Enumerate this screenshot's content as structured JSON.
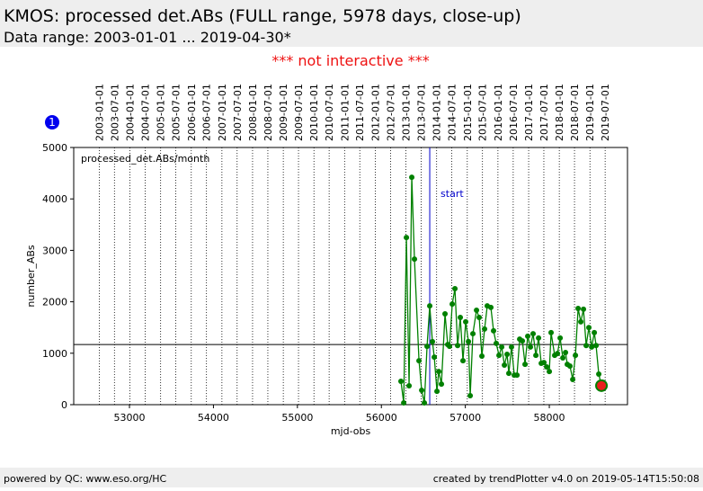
{
  "header": {
    "title": "KMOS: processed det.ABs (FULL range, 5978 days, close-up)",
    "subtitle": "Data range: 2003-01-01 ... 2019-04-30*"
  },
  "notice": "*** not interactive ***",
  "badge": "1",
  "footer": {
    "left": "powered by QC: www.eso.org/HC",
    "right": "created by trendPlotter v4.0 on 2019-05-14T15:50:08"
  },
  "chart_data": {
    "type": "line",
    "annotation": "processed_det.ABs/month",
    "y_label": "number_ABs",
    "x_label": "mjd-obs",
    "xlim": [
      52336,
      58931
    ],
    "ylim": [
      0,
      5000
    ],
    "xticks": [
      53000,
      54000,
      55000,
      56000,
      57000,
      58000
    ],
    "yticks": [
      0,
      1000,
      2000,
      3000,
      4000,
      5000
    ],
    "x2ticks": [
      {
        "value": 52640,
        "label": "2003-01-01"
      },
      {
        "value": 52821,
        "label": "2003-07-01"
      },
      {
        "value": 53005,
        "label": "2004-01-01"
      },
      {
        "value": 53187,
        "label": "2004-07-01"
      },
      {
        "value": 53371,
        "label": "2005-01-01"
      },
      {
        "value": 53552,
        "label": "2005-07-01"
      },
      {
        "value": 53736,
        "label": "2006-01-01"
      },
      {
        "value": 53917,
        "label": "2006-07-01"
      },
      {
        "value": 54101,
        "label": "2007-01-01"
      },
      {
        "value": 54282,
        "label": "2007-07-01"
      },
      {
        "value": 54466,
        "label": "2008-01-01"
      },
      {
        "value": 54648,
        "label": "2008-07-01"
      },
      {
        "value": 54832,
        "label": "2009-01-01"
      },
      {
        "value": 55013,
        "label": "2009-07-01"
      },
      {
        "value": 55197,
        "label": "2010-01-01"
      },
      {
        "value": 55378,
        "label": "2010-07-01"
      },
      {
        "value": 55562,
        "label": "2011-01-01"
      },
      {
        "value": 55743,
        "label": "2011-07-01"
      },
      {
        "value": 55927,
        "label": "2012-01-01"
      },
      {
        "value": 56109,
        "label": "2012-07-01"
      },
      {
        "value": 56293,
        "label": "2013-01-01"
      },
      {
        "value": 56474,
        "label": "2013-07-01"
      },
      {
        "value": 56658,
        "label": "2014-01-01"
      },
      {
        "value": 56839,
        "label": "2014-07-01"
      },
      {
        "value": 57023,
        "label": "2015-01-01"
      },
      {
        "value": 57204,
        "label": "2015-07-01"
      },
      {
        "value": 57388,
        "label": "2016-01-01"
      },
      {
        "value": 57570,
        "label": "2016-07-01"
      },
      {
        "value": 57754,
        "label": "2017-01-01"
      },
      {
        "value": 57935,
        "label": "2017-07-01"
      },
      {
        "value": 58119,
        "label": "2018-01-01"
      },
      {
        "value": 58300,
        "label": "2018-07-01"
      },
      {
        "value": 58484,
        "label": "2019-01-01"
      },
      {
        "value": 58665,
        "label": "2019-07-01"
      }
    ],
    "hline": 1170,
    "vline": {
      "value": 56576,
      "label": "start"
    },
    "highlight_color": "#e8201c",
    "series": [
      {
        "color": "#008000",
        "x": [
          56233,
          56266,
          56298,
          56330,
          56362,
          56394,
          56448,
          56480,
          56512,
          56544,
          56576,
          56608,
          56630,
          56662,
          56683,
          56715,
          56758,
          56790,
          56812,
          56844,
          56876,
          56908,
          56940,
          56972,
          57004,
          57037,
          57058,
          57090,
          57133,
          57165,
          57197,
          57229,
          57261,
          57304,
          57336,
          57368,
          57401,
          57433,
          57465,
          57497,
          57518,
          57550,
          57583,
          57615,
          57647,
          57679,
          57711,
          57743,
          57775,
          57807,
          57840,
          57872,
          57904,
          57936,
          57968,
          58000,
          58021,
          58064,
          58097,
          58129,
          58161,
          58193,
          58214,
          58246,
          58279,
          58311,
          58343,
          58375,
          58407,
          58439,
          58471,
          58504,
          58536,
          58557,
          58589,
          58621
        ],
        "values": [
          455,
          35,
          3250,
          367,
          4420,
          2830,
          855,
          280,
          35,
          1135,
          1920,
          1225,
          925,
          260,
          645,
          400,
          1765,
          1170,
          1135,
          1955,
          2255,
          1150,
          1695,
          855,
          1610,
          1225,
          175,
          1380,
          1835,
          1695,
          945,
          1470,
          1920,
          1890,
          1435,
          1190,
          960,
          1120,
          770,
          980,
          610,
          1120,
          575,
          575,
          1275,
          1240,
          785,
          1330,
          1120,
          1380,
          960,
          1295,
          805,
          820,
          735,
          645,
          1400,
          960,
          995,
          1295,
          910,
          1015,
          785,
          750,
          490,
          960,
          1870,
          1610,
          1855,
          1150,
          1500,
          1120,
          1400,
          1150,
          595,
          370
        ]
      }
    ]
  }
}
